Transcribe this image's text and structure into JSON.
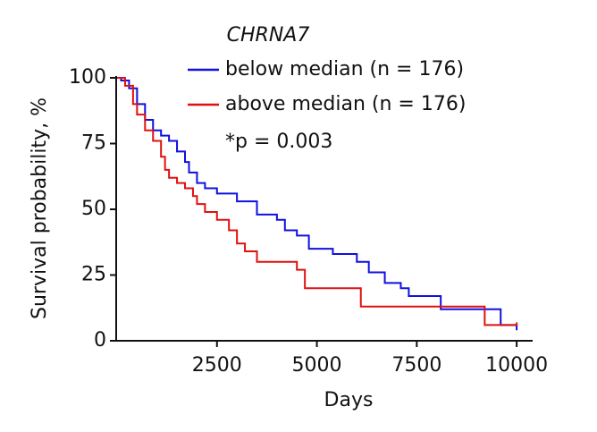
{
  "chart_data": {
    "type": "step",
    "title": "CHRNA7",
    "annotation": "*p = 0.003",
    "x_label": "Days",
    "y_label": "Survival probability, %",
    "xlim": [
      0,
      10400
    ],
    "ylim": [
      0,
      100
    ],
    "xticks": [
      2500,
      5000,
      7500,
      10000
    ],
    "yticks": [
      0,
      25,
      50,
      75,
      100
    ],
    "series": [
      {
        "name": "below median (n = 176)",
        "color": "#1010e0",
        "x": [
          0,
          100,
          300,
          500,
          700,
          900,
          1100,
          1300,
          1500,
          1700,
          1800,
          2000,
          2200,
          2500,
          3000,
          3500,
          4000,
          4200,
          4500,
          4800,
          5400,
          6000,
          6300,
          6700,
          7100,
          7300,
          8100,
          9600,
          10000
        ],
        "values": [
          100,
          99,
          96,
          90,
          84,
          80,
          78,
          76,
          72,
          68,
          64,
          60,
          58,
          56,
          53,
          48,
          46,
          42,
          40,
          35,
          33,
          30,
          26,
          22,
          20,
          17,
          12,
          6,
          4
        ]
      },
      {
        "name": "above median (n = 176)",
        "color": "#e01010",
        "x": [
          0,
          200,
          400,
          500,
          700,
          900,
          1100,
          1200,
          1300,
          1500,
          1700,
          1900,
          2000,
          2200,
          2500,
          2800,
          3000,
          3200,
          3500,
          4500,
          4700,
          6100,
          9200,
          10000
        ],
        "values": [
          100,
          97,
          90,
          86,
          80,
          76,
          70,
          65,
          62,
          60,
          58,
          55,
          52,
          49,
          46,
          42,
          37,
          34,
          30,
          27,
          20,
          13,
          6,
          7
        ]
      }
    ]
  }
}
